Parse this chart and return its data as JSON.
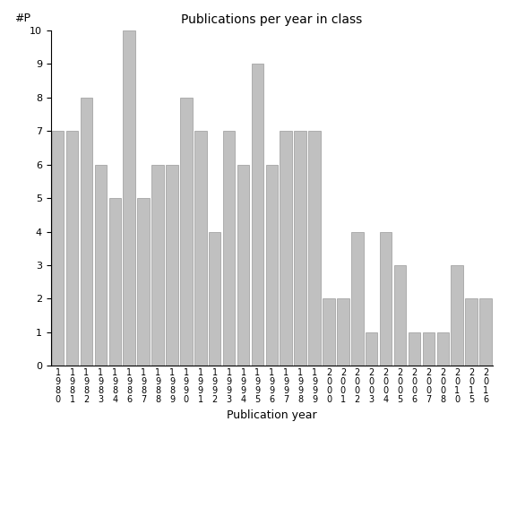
{
  "categories": [
    "1980",
    "1981",
    "1982",
    "1983",
    "1984",
    "1986",
    "1987",
    "1988",
    "1989",
    "1990",
    "1991",
    "1992",
    "1993",
    "1994",
    "1995",
    "1996",
    "1997",
    "1998",
    "1999",
    "2000",
    "2001",
    "2002",
    "2003",
    "2004",
    "2005",
    "2006",
    "2007",
    "2008",
    "2010",
    "2015",
    "2016"
  ],
  "values": [
    7,
    7,
    8,
    6,
    5,
    10,
    5,
    6,
    6,
    8,
    7,
    4,
    7,
    6,
    9,
    6,
    7,
    7,
    7,
    2,
    2,
    4,
    1,
    4,
    3,
    1,
    1,
    1,
    3,
    2,
    2
  ],
  "title": "Publications per year in class",
  "xlabel": "Publication year",
  "ylabel": "#P",
  "ylim_max": 10,
  "bar_color": "#c0c0c0",
  "bar_edge_color": "#999999",
  "title_fontsize": 10,
  "xlabel_fontsize": 9,
  "ylabel_fontsize": 9,
  "tick_fontsize": 7,
  "ytick_fontsize": 8
}
